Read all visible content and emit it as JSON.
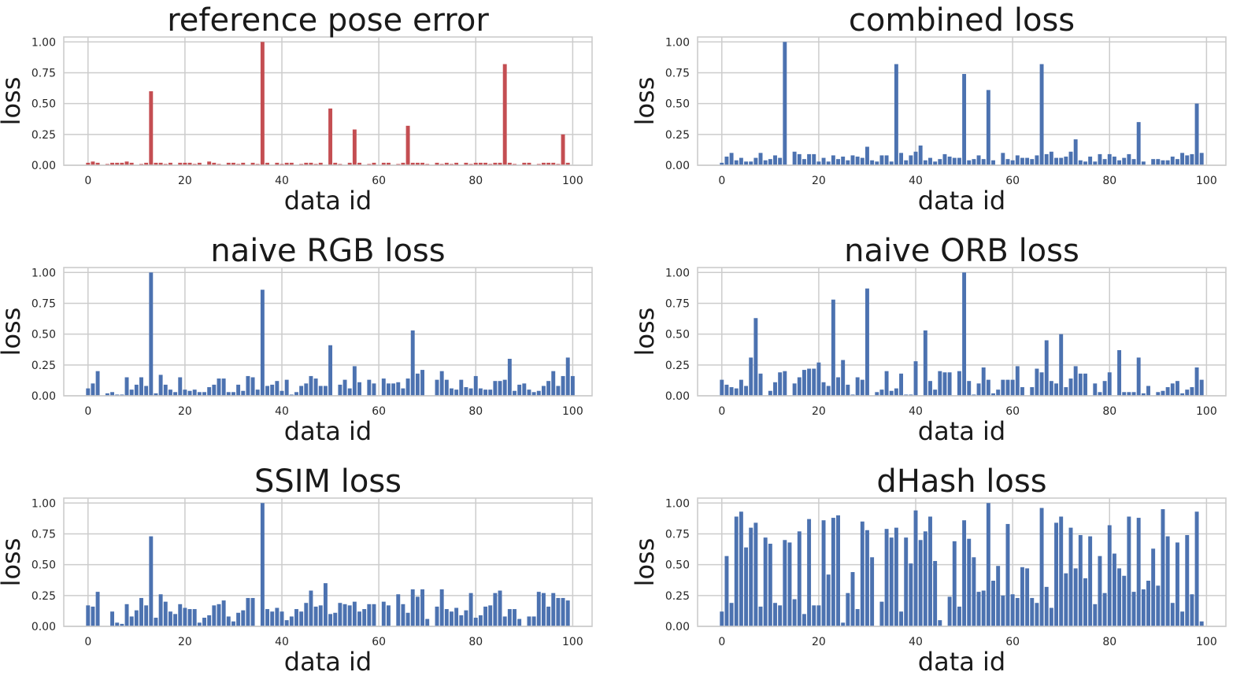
{
  "figure": {
    "background": "#ffffff",
    "grid": true,
    "grid_color": "#cccccc"
  },
  "chart_data": [
    {
      "type": "bar",
      "title": "reference pose error",
      "xlabel": "data id",
      "ylabel": "loss",
      "color": "#c44e52",
      "xlim": [
        -5,
        104
      ],
      "ylim": [
        0,
        1.04
      ],
      "xticks": [
        0,
        20,
        40,
        60,
        80,
        100
      ],
      "yticks": [
        "0.00",
        "0.25",
        "0.50",
        "0.75",
        "1.00"
      ],
      "x_start": 0,
      "values": [
        0.02,
        0.03,
        0.02,
        0.0,
        0.01,
        0.02,
        0.02,
        0.02,
        0.03,
        0.02,
        0.0,
        0.01,
        0.02,
        0.6,
        0.02,
        0.02,
        0.01,
        0.02,
        0.0,
        0.02,
        0.02,
        0.02,
        0.01,
        0.02,
        0.0,
        0.03,
        0.02,
        0.01,
        0.0,
        0.02,
        0.02,
        0.01,
        0.02,
        0.0,
        0.02,
        0.01,
        1.0,
        0.02,
        0.0,
        0.02,
        0.01,
        0.02,
        0.02,
        0.0,
        0.01,
        0.02,
        0.02,
        0.01,
        0.02,
        0.0,
        0.46,
        0.02,
        0.01,
        0.0,
        0.02,
        0.29,
        0.02,
        0.0,
        0.01,
        0.02,
        0.0,
        0.02,
        0.02,
        0.0,
        0.01,
        0.02,
        0.32,
        0.02,
        0.02,
        0.02,
        0.01,
        0.0,
        0.02,
        0.01,
        0.02,
        0.01,
        0.02,
        0.0,
        0.02,
        0.01,
        0.02,
        0.02,
        0.02,
        0.01,
        0.02,
        0.02,
        0.82,
        0.02,
        0.01,
        0.0,
        0.02,
        0.02,
        0.0,
        0.01,
        0.02,
        0.02,
        0.02,
        0.01,
        0.25,
        0.02
      ]
    },
    {
      "type": "bar",
      "title": "combined loss",
      "xlabel": "data id",
      "ylabel": "loss",
      "color": "#4c72b0",
      "xlim": [
        -5,
        104
      ],
      "ylim": [
        0,
        1.04
      ],
      "xticks": [
        0,
        20,
        40,
        60,
        80,
        100
      ],
      "yticks": [
        "0.00",
        "0.25",
        "0.50",
        "0.75",
        "1.00"
      ],
      "x_start": 0,
      "values": [
        0.02,
        0.07,
        0.1,
        0.04,
        0.06,
        0.03,
        0.03,
        0.06,
        0.1,
        0.04,
        0.05,
        0.08,
        0.06,
        1.0,
        0.0,
        0.11,
        0.09,
        0.05,
        0.09,
        0.09,
        0.03,
        0.06,
        0.03,
        0.08,
        0.05,
        0.07,
        0.04,
        0.08,
        0.07,
        0.06,
        0.15,
        0.04,
        0.03,
        0.08,
        0.08,
        0.03,
        0.82,
        0.1,
        0.04,
        0.08,
        0.11,
        0.16,
        0.04,
        0.06,
        0.03,
        0.05,
        0.09,
        0.07,
        0.06,
        0.06,
        0.74,
        0.04,
        0.05,
        0.08,
        0.05,
        0.61,
        0.04,
        0.0,
        0.1,
        0.05,
        0.04,
        0.08,
        0.06,
        0.06,
        0.05,
        0.08,
        0.82,
        0.09,
        0.11,
        0.06,
        0.06,
        0.07,
        0.11,
        0.21,
        0.04,
        0.03,
        0.07,
        0.03,
        0.09,
        0.05,
        0.09,
        0.07,
        0.04,
        0.06,
        0.09,
        0.05,
        0.35,
        0.03,
        0.0,
        0.05,
        0.05,
        0.04,
        0.04,
        0.07,
        0.05,
        0.1,
        0.08,
        0.09,
        0.5,
        0.1
      ]
    },
    {
      "type": "bar",
      "title": "naive RGB loss",
      "xlabel": "data id",
      "ylabel": "loss",
      "color": "#4c72b0",
      "xlim": [
        -5,
        104
      ],
      "ylim": [
        0,
        1.04
      ],
      "xticks": [
        0,
        20,
        40,
        60,
        80,
        100
      ],
      "yticks": [
        "0.00",
        "0.25",
        "0.50",
        "0.75",
        "1.00"
      ],
      "x_start": 0,
      "values": [
        0.06,
        0.1,
        0.2,
        0.0,
        0.02,
        0.03,
        0.01,
        0.01,
        0.15,
        0.05,
        0.09,
        0.15,
        0.08,
        1.0,
        0.02,
        0.17,
        0.09,
        0.05,
        0.03,
        0.15,
        0.05,
        0.04,
        0.05,
        0.03,
        0.03,
        0.07,
        0.09,
        0.14,
        0.14,
        0.03,
        0.03,
        0.09,
        0.04,
        0.16,
        0.15,
        0.05,
        0.86,
        0.08,
        0.09,
        0.12,
        0.04,
        0.13,
        0.01,
        0.03,
        0.08,
        0.1,
        0.16,
        0.14,
        0.08,
        0.08,
        0.41,
        0.0,
        0.09,
        0.13,
        0.06,
        0.24,
        0.11,
        0.0,
        0.13,
        0.1,
        0.0,
        0.14,
        0.1,
        0.1,
        0.11,
        0.06,
        0.14,
        0.53,
        0.18,
        0.21,
        0.0,
        0.0,
        0.13,
        0.2,
        0.13,
        0.06,
        0.05,
        0.13,
        0.07,
        0.06,
        0.16,
        0.06,
        0.05,
        0.05,
        0.12,
        0.12,
        0.13,
        0.3,
        0.04,
        0.09,
        0.1,
        0.05,
        0.03,
        0.04,
        0.08,
        0.12,
        0.2,
        0.08,
        0.16,
        0.31,
        0.16
      ]
    },
    {
      "type": "bar",
      "title": "naive ORB loss",
      "xlabel": "data id",
      "ylabel": "loss",
      "color": "#4c72b0",
      "xlim": [
        -5,
        104
      ],
      "ylim": [
        0,
        1.04
      ],
      "xticks": [
        0,
        20,
        40,
        60,
        80,
        100
      ],
      "yticks": [
        "0.00",
        "0.25",
        "0.50",
        "0.75",
        "1.00"
      ],
      "x_start": 0,
      "values": [
        0.13,
        0.09,
        0.07,
        0.06,
        0.13,
        0.08,
        0.31,
        0.63,
        0.18,
        0.0,
        0.04,
        0.11,
        0.19,
        0.2,
        0.0,
        0.1,
        0.15,
        0.21,
        0.22,
        0.22,
        0.27,
        0.11,
        0.08,
        0.78,
        0.15,
        0.29,
        0.09,
        0.01,
        0.15,
        0.13,
        0.87,
        0.0,
        0.03,
        0.05,
        0.2,
        0.04,
        0.06,
        0.18,
        0.01,
        0.01,
        0.28,
        0.0,
        0.53,
        0.12,
        0.05,
        0.2,
        0.19,
        0.19,
        0.0,
        0.2,
        1.0,
        0.12,
        0.01,
        0.1,
        0.23,
        0.13,
        0.02,
        0.05,
        0.13,
        0.13,
        0.13,
        0.24,
        0.07,
        0.0,
        0.07,
        0.22,
        0.19,
        0.45,
        0.12,
        0.1,
        0.5,
        0.07,
        0.14,
        0.24,
        0.18,
        0.18,
        0.0,
        0.1,
        0.03,
        0.12,
        0.19,
        0.0,
        0.37,
        0.03,
        0.03,
        0.03,
        0.31,
        0.02,
        0.08,
        0.0,
        0.03,
        0.04,
        0.07,
        0.1,
        0.12,
        0.02,
        0.05,
        0.07,
        0.23,
        0.13
      ]
    },
    {
      "type": "bar",
      "title": "SSIM loss",
      "xlabel": "data id",
      "ylabel": "loss",
      "color": "#4c72b0",
      "xlim": [
        -5,
        104
      ],
      "ylim": [
        0,
        1.04
      ],
      "xticks": [
        0,
        20,
        40,
        60,
        80,
        100
      ],
      "yticks": [
        "0.00",
        "0.25",
        "0.50",
        "0.75",
        "1.00"
      ],
      "x_start": 0,
      "values": [
        0.17,
        0.16,
        0.28,
        0.0,
        0.0,
        0.12,
        0.03,
        0.02,
        0.18,
        0.08,
        0.13,
        0.23,
        0.17,
        0.73,
        0.07,
        0.26,
        0.2,
        0.12,
        0.1,
        0.18,
        0.15,
        0.14,
        0.14,
        0.03,
        0.07,
        0.09,
        0.17,
        0.18,
        0.21,
        0.08,
        0.04,
        0.11,
        0.13,
        0.23,
        0.23,
        0.0,
        1.0,
        0.14,
        0.12,
        0.15,
        0.12,
        0.05,
        0.08,
        0.14,
        0.12,
        0.19,
        0.29,
        0.16,
        0.17,
        0.35,
        0.1,
        0.11,
        0.19,
        0.18,
        0.17,
        0.2,
        0.12,
        0.14,
        0.18,
        0.18,
        0.0,
        0.2,
        0.17,
        0.0,
        0.26,
        0.18,
        0.11,
        0.3,
        0.24,
        0.3,
        0.06,
        0.0,
        0.16,
        0.3,
        0.14,
        0.12,
        0.15,
        0.09,
        0.13,
        0.27,
        0.07,
        0.09,
        0.16,
        0.17,
        0.27,
        0.29,
        0.08,
        0.14,
        0.14,
        0.06,
        0.0,
        0.08,
        0.08,
        0.28,
        0.27,
        0.16,
        0.27,
        0.23,
        0.23,
        0.21
      ]
    },
    {
      "type": "bar",
      "title": "dHash loss",
      "xlabel": "data id",
      "ylabel": "loss",
      "color": "#4c72b0",
      "xlim": [
        -5,
        104
      ],
      "ylim": [
        0,
        1.04
      ],
      "xticks": [
        0,
        20,
        40,
        60,
        80,
        100
      ],
      "yticks": [
        "0.00",
        "0.25",
        "0.50",
        "0.75",
        "1.00"
      ],
      "x_start": 0,
      "values": [
        0.12,
        0.57,
        0.19,
        0.89,
        0.93,
        0.64,
        0.8,
        0.84,
        0.16,
        0.72,
        0.67,
        0.19,
        0.17,
        0.7,
        0.68,
        0.22,
        0.77,
        0.1,
        0.87,
        0.17,
        0.17,
        0.86,
        0.42,
        0.88,
        0.9,
        0.03,
        0.27,
        0.44,
        0.14,
        0.85,
        0.78,
        0.56,
        0.0,
        0.2,
        0.79,
        0.72,
        0.8,
        0.12,
        0.72,
        0.51,
        0.94,
        0.7,
        0.77,
        0.89,
        0.53,
        0.05,
        0.0,
        0.24,
        0.69,
        0.16,
        0.86,
        0.71,
        0.56,
        0.28,
        0.29,
        1.0,
        0.37,
        0.49,
        0.25,
        0.83,
        0.26,
        0.23,
        0.48,
        0.47,
        0.23,
        0.19,
        0.96,
        0.32,
        0.15,
        0.84,
        0.89,
        0.43,
        0.8,
        0.47,
        0.74,
        0.39,
        0.73,
        0.18,
        0.57,
        0.27,
        0.82,
        0.59,
        0.47,
        0.41,
        0.89,
        0.28,
        0.88,
        0.3,
        0.37,
        0.63,
        0.33,
        0.95,
        0.73,
        0.19,
        0.68,
        0.12,
        0.74,
        0.26,
        0.93,
        0.04
      ]
    }
  ]
}
